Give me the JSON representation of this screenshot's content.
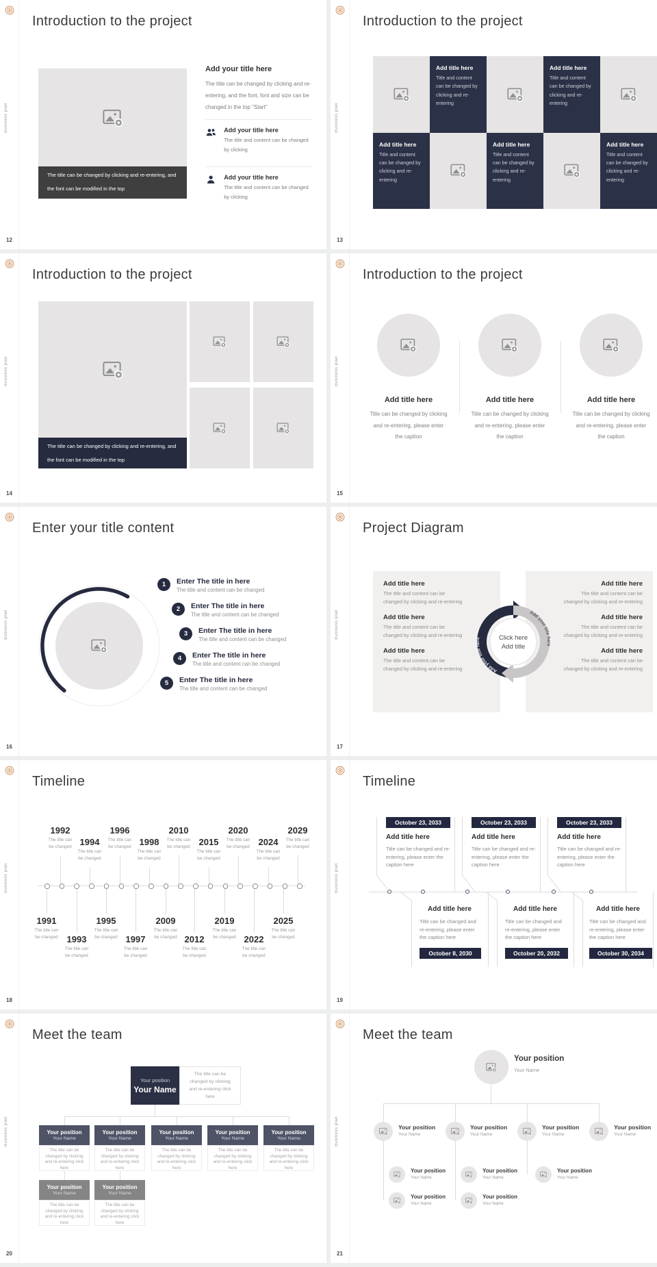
{
  "brand": {
    "vertical_label": "Business plan",
    "accent_navy": "#2b3147",
    "caption_dark_gray": "#3f3f3f",
    "caption_navy": "#262b3f",
    "badge_navy": "#232840",
    "org_slate": "#4f5366",
    "org_gray": "#858585",
    "logo_orange": "#bd7b45",
    "placeholder_gray": "#e6e4e4"
  },
  "icons": {
    "image_add": "image-add-icon",
    "people": "people-icon",
    "person": "person-icon",
    "logo": "badge-logo-icon"
  },
  "slides": {
    "s12": {
      "number": "12",
      "title": "Introduction to the project",
      "caption": "The title can be changed by clicking and re-entering, and the font can be modified in the top",
      "heading": "Add your title here",
      "intro": "The title can be changed by clicking and re-entering, and the font, font and size can be changed in the top \"Start\"",
      "items": [
        {
          "icon": "people-icon",
          "heading": "Add your title here",
          "body": "The title and content can be changed by clicking"
        },
        {
          "icon": "person-icon",
          "heading": "Add your title here",
          "body": "The title and content can be changed by clicking"
        }
      ]
    },
    "s13": {
      "number": "13",
      "title": "Introduction to the project",
      "cell_heading": "Add title here",
      "cell_body": "Title and content can be changed by clicking and re-entering"
    },
    "s14": {
      "number": "14",
      "title": "Introduction to the project",
      "caption": "The title can be changed by clicking and re-entering, and the font can be modified in the top"
    },
    "s15": {
      "number": "15",
      "title": "Introduction to the project",
      "heading": "Add title here",
      "body": "Title can be changed by clicking and re-entering, please enter the caption"
    },
    "s16": {
      "number": "16",
      "title": "Enter your title content",
      "steps": [
        "1",
        "2",
        "3",
        "4",
        "5"
      ],
      "item_heading": "Enter The title in here",
      "item_body": "The title and content can be changed"
    },
    "s17": {
      "number": "17",
      "title": "Project Diagram",
      "block_heading": "Add title here",
      "block_body": "The title and content can be changed by clicking and re-entering",
      "center_line1": "Click here",
      "center_line2": "Add title",
      "arrow_label_left": "Add your title here",
      "arrow_label_right": "Add your title here"
    },
    "s18": {
      "number": "18",
      "title": "Timeline",
      "caption_l1": "The title can",
      "caption_l2": "be changed",
      "top_years": [
        "1992",
        "1994",
        "1996",
        "1998",
        "2010",
        "2015",
        "2020",
        "2024",
        "2029"
      ],
      "bottom_years": [
        "1991",
        "1993",
        "1995",
        "1997",
        "2009",
        "2012",
        "2019",
        "2022",
        "2025"
      ]
    },
    "s19": {
      "number": "19",
      "title": "Timeline",
      "card_heading": "Add title here",
      "card_body": "Title can be changed and re-entering, please enter the caption here",
      "top_dates": [
        "October 23, 2033",
        "October 23, 2033",
        "October 23, 2033"
      ],
      "bottom_dates": [
        "October 8, 2030",
        "October 20, 2032",
        "October 30, 2034"
      ]
    },
    "s20": {
      "number": "20",
      "title": "Meet the team",
      "position": "Your position",
      "name": "Your Name",
      "note": "The title can be changed by clicking and re-entering click here"
    },
    "s21": {
      "number": "21",
      "title": "Meet the team",
      "position": "Your position",
      "name": "Your Name"
    }
  }
}
